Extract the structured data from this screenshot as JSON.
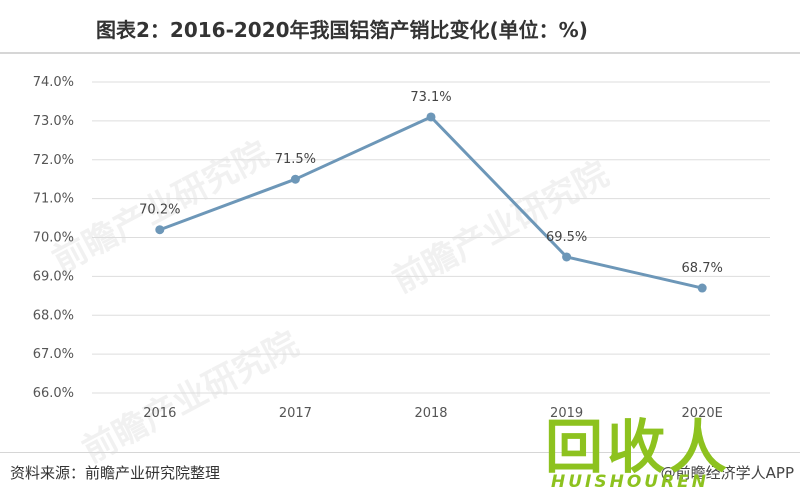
{
  "title": "图表2：2016-2020年我国铝箔产销比变化(单位：%)",
  "source": "资料来源：前瞻产业研究院整理",
  "credit": "@前瞻经济学人APP",
  "watermark": "前瞻产业研究院",
  "logo": {
    "text": "回收人",
    "subtext": "HUISHOUREN"
  },
  "colors": {
    "line": "#6d97b8",
    "marker": "#6d97b8",
    "grid": "#dddddd",
    "logo": "#8dc21f"
  },
  "chart_data": {
    "type": "line",
    "categories": [
      "2016",
      "2017",
      "2018",
      "2019",
      "2020E"
    ],
    "series": [
      {
        "values": [
          70.2,
          71.5,
          73.1,
          69.5,
          68.7
        ]
      }
    ],
    "data_labels": [
      "70.2%",
      "71.5%",
      "73.1%",
      "69.5%",
      "68.7%"
    ],
    "yticks": [
      "66.0%",
      "67.0%",
      "68.0%",
      "69.0%",
      "70.0%",
      "71.0%",
      "72.0%",
      "73.0%",
      "74.0%"
    ],
    "ylim": [
      66,
      74
    ],
    "grid": true,
    "legend": false
  }
}
